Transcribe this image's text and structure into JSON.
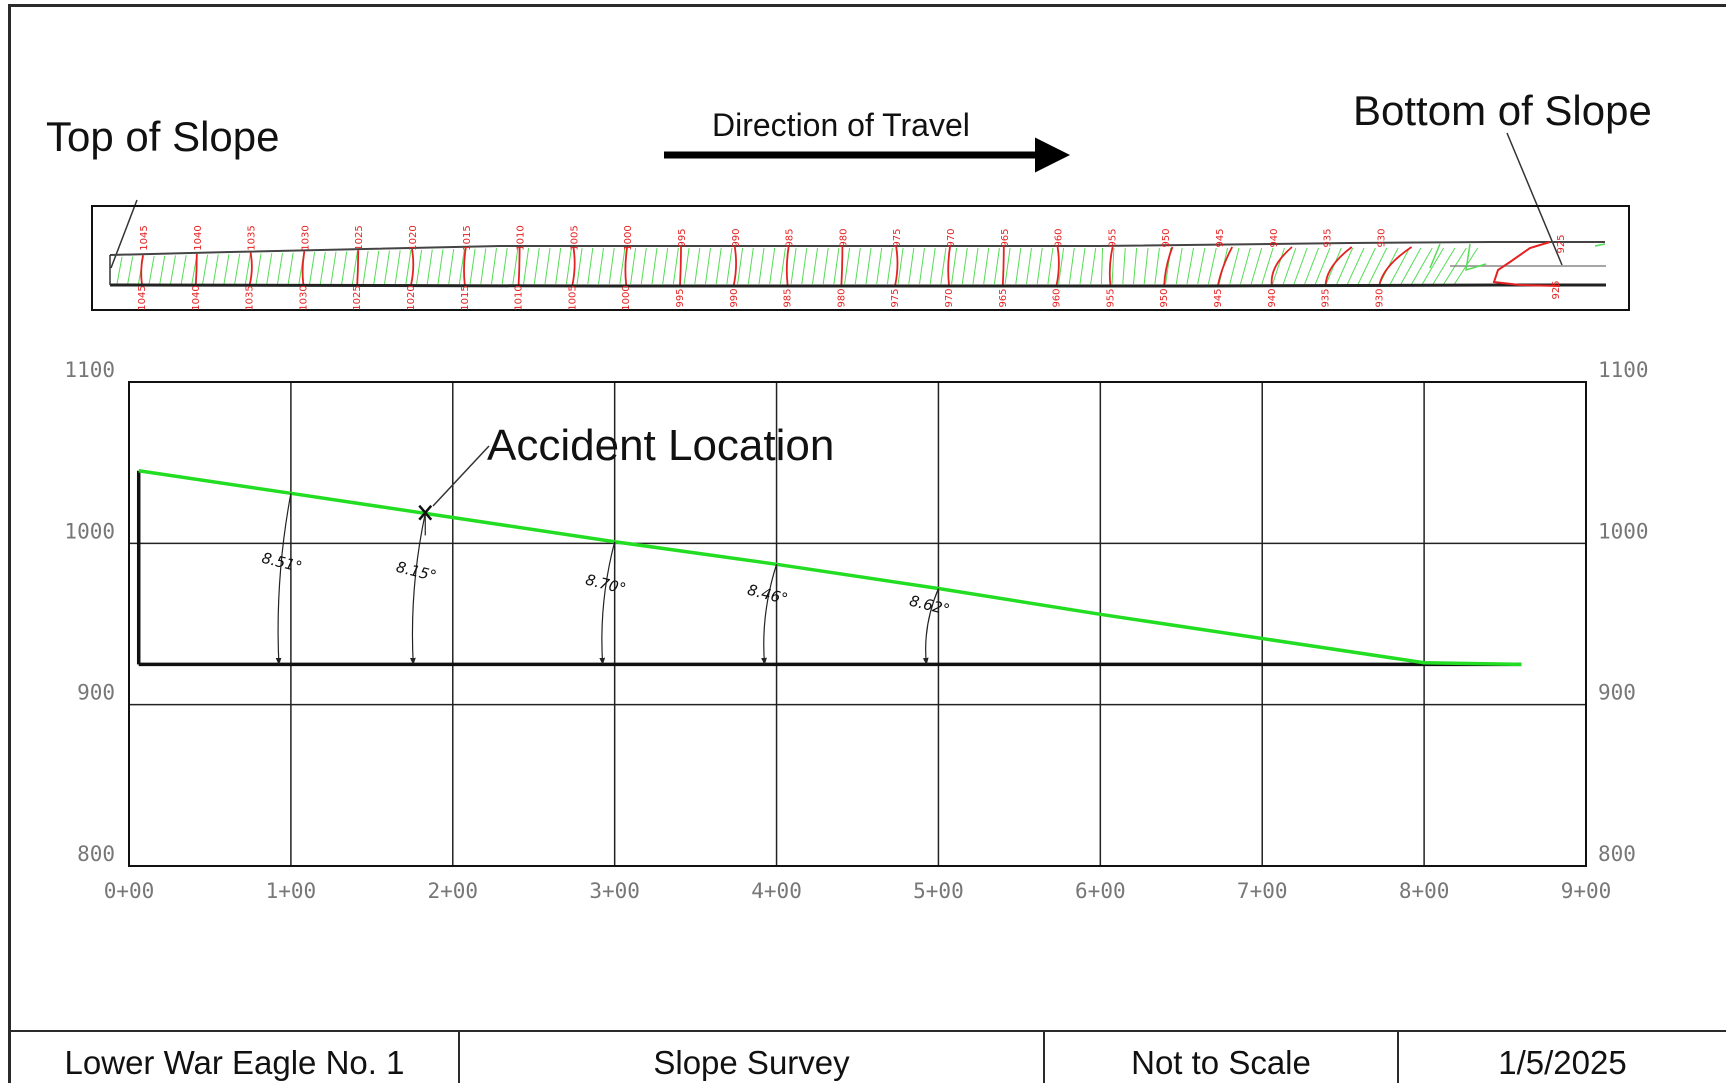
{
  "labels": {
    "top_of_slope": "Top of Slope",
    "direction_of_travel": "Direction of Travel",
    "bottom_of_slope": "Bottom of Slope",
    "accident_location": "Accident Location"
  },
  "title_block": {
    "project": "Lower War Eagle No. 1",
    "drawing": "Slope Survey",
    "scale": "Not to Scale",
    "date": "1/5/2025"
  },
  "plan_view": {
    "contour_labels_top": [
      "1045",
      "1040",
      "1035",
      "1030",
      "1025",
      "1020",
      "1015",
      "1010",
      "1005",
      "1000",
      "995",
      "990",
      "985",
      "980",
      "975",
      "970",
      "965",
      "960",
      "955",
      "950",
      "945",
      "940",
      "935",
      "930",
      "925"
    ],
    "contour_labels_bottom": [
      "1045",
      "1040",
      "1035",
      "1030",
      "1025",
      "1020",
      "1015",
      "1010",
      "1005",
      "1000",
      "995",
      "990",
      "985",
      "980",
      "975",
      "970",
      "965",
      "960",
      "955",
      "950",
      "945",
      "940",
      "935",
      "930",
      "925"
    ]
  },
  "colors": {
    "profile_line": "#22dd22",
    "contours_major": "#e52222",
    "contours_minor": "#55dd55",
    "frame": "#111111"
  },
  "chart_data": {
    "type": "line",
    "y_ticks_left": [
      "1100",
      "1000",
      "900",
      "800"
    ],
    "y_ticks_right": [
      "1100",
      "1000",
      "900",
      "800"
    ],
    "x_ticks": [
      "0+00",
      "1+00",
      "2+00",
      "3+00",
      "4+00",
      "5+00",
      "6+00",
      "7+00",
      "8+00",
      "9+00"
    ],
    "xlim": [
      0,
      900
    ],
    "ylim": [
      800,
      1100
    ],
    "grid": true,
    "series": [
      {
        "x": [
          6,
          100,
          200,
          300,
          400,
          500,
          600,
          700,
          800,
          860
        ],
        "y": [
          1045,
          1031,
          1016,
          1001,
          987,
          972,
          956,
          941,
          926,
          925
        ]
      }
    ],
    "baseline": {
      "x": [
        6,
        860
      ],
      "y": 925
    },
    "accident_marker": {
      "x": 183,
      "y": 1019
    },
    "slope_angles": [
      {
        "x": 100,
        "label": "8.51°"
      },
      {
        "x": 183,
        "label": "8.15°"
      },
      {
        "x": 300,
        "label": "8.70°"
      },
      {
        "x": 400,
        "label": "8.46°"
      },
      {
        "x": 500,
        "label": "8.62°"
      }
    ]
  }
}
